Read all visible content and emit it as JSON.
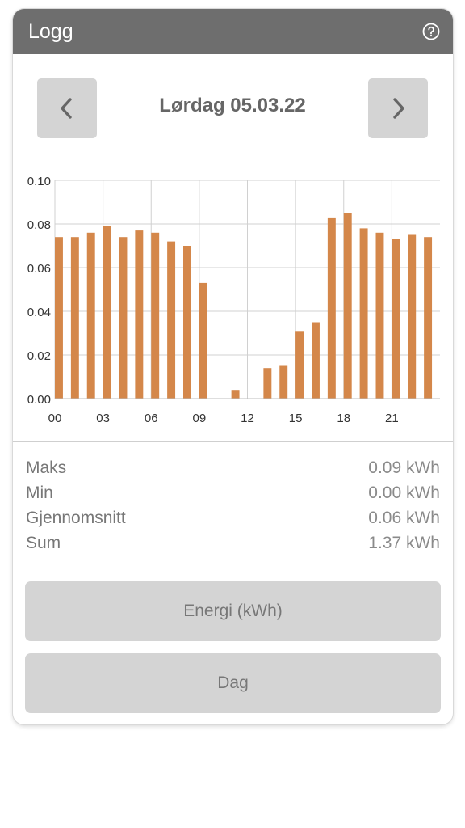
{
  "header": {
    "title": "Logg",
    "help_icon": "help-circle-icon"
  },
  "navigation": {
    "prev_icon": "chevron-left-icon",
    "next_icon": "chevron-right-icon",
    "date": "Lørdag 05.03.22"
  },
  "chart_data": {
    "type": "bar",
    "title": "",
    "xlabel": "",
    "ylabel": "",
    "categories": [
      "00",
      "01",
      "02",
      "03",
      "04",
      "05",
      "06",
      "07",
      "08",
      "09",
      "10",
      "11",
      "12",
      "13",
      "14",
      "15",
      "16",
      "17",
      "18",
      "19",
      "20",
      "21",
      "22",
      "23"
    ],
    "x_tick_labels": [
      "00",
      "03",
      "06",
      "09",
      "12",
      "15",
      "18",
      "21"
    ],
    "y_tick_labels": [
      "0.00",
      "0.02",
      "0.04",
      "0.06",
      "0.08",
      "0.10"
    ],
    "values": [
      0.074,
      0.074,
      0.076,
      0.079,
      0.074,
      0.077,
      0.076,
      0.072,
      0.07,
      0.053,
      0.0,
      0.004,
      0.0,
      0.014,
      0.015,
      0.031,
      0.035,
      0.083,
      0.085,
      0.078,
      0.076,
      0.073,
      0.075,
      0.074
    ],
    "ylim": [
      0,
      0.1
    ],
    "grid": true,
    "bar_color": "#d4874a"
  },
  "stats": [
    {
      "label": "Maks",
      "value": "0.09 kWh"
    },
    {
      "label": "Min",
      "value": "0.00 kWh"
    },
    {
      "label": "Gjennomsnitt",
      "value": "0.06 kWh"
    },
    {
      "label": "Sum",
      "value": "1.37 kWh"
    }
  ],
  "buttons": {
    "energy": "Energi (kWh)",
    "period": "Dag"
  },
  "colors": {
    "header_bg": "#6e6e6e",
    "button_bg": "#d4d4d4",
    "bar": "#d4874a"
  }
}
